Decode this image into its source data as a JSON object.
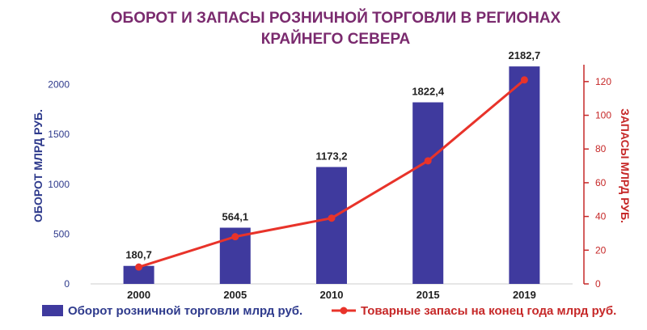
{
  "chart_data": {
    "type": "bar+line",
    "title_line1": "ОБОРОТ И ЗАПАСЫ РОЗНИЧНОЙ ТОРГОВЛИ В РЕГИОНАХ",
    "title_line2": "КРАЙНЕГО СЕВЕРА",
    "categories": [
      "2000",
      "2005",
      "2010",
      "2015",
      "2019"
    ],
    "series": [
      {
        "name": "Оборот розничной торговли млрд руб.",
        "type": "bar",
        "axis": "left",
        "values": [
          180.7,
          564.1,
          1173.2,
          1822.4,
          2182.7
        ],
        "labels": [
          "180,7",
          "564,1",
          "1173,2",
          "1822,4",
          "2182,7"
        ],
        "color": "#3f3a9e"
      },
      {
        "name": "Товарные запасы на конец года млрд руб.",
        "type": "line",
        "axis": "right",
        "values": [
          10,
          28,
          39,
          73,
          121
        ],
        "color": "#e8332a"
      }
    ],
    "ylabel_left": "ОБОРОТ МЛРД РУБ.",
    "ylabel_right": "ЗАПАСЫ МЛРД РУБ.",
    "ylim_left": [
      0,
      2200
    ],
    "yticks_left": [
      0,
      500,
      1000,
      1500,
      2000
    ],
    "ylim_right": [
      0,
      130
    ],
    "yticks_right": [
      0,
      20,
      40,
      60,
      80,
      100,
      120
    ],
    "grid": false,
    "legend_position": "bottom",
    "title_color": "#7a2a6e",
    "left_axis_color": "#2e3a8c",
    "right_axis_color": "#c62828"
  }
}
